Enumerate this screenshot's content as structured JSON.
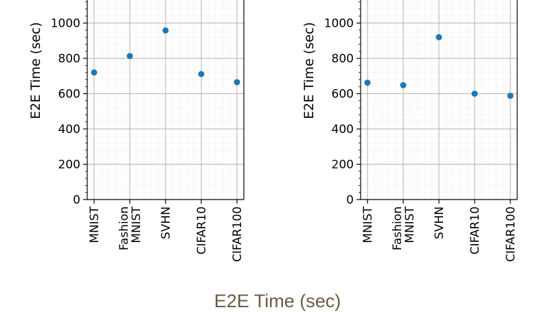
{
  "caption": "E2E Time (sec)",
  "chart_data": [
    {
      "type": "scatter",
      "ylabel": "E2E Time (sec)",
      "xlabel": "",
      "categories": [
        "MNIST",
        "Fashion\nMNIST",
        "SVHN",
        "CIFAR10",
        "CIFAR100"
      ],
      "values": [
        720,
        813,
        958,
        711,
        665
      ],
      "ylim": [
        0,
        1150
      ],
      "yticks": [
        0,
        200,
        400,
        600,
        800,
        1000
      ],
      "grid": true,
      "marker_color": "#1f77b4"
    },
    {
      "type": "scatter",
      "ylabel": "E2E Time (sec)",
      "xlabel": "",
      "categories": [
        "MNIST",
        "Fashion\nMNIST",
        "SVHN",
        "CIFAR10",
        "CIFAR100"
      ],
      "values": [
        662,
        648,
        920,
        600,
        588
      ],
      "ylim": [
        0,
        1150
      ],
      "yticks": [
        0,
        200,
        400,
        600,
        800,
        1000
      ],
      "grid": true,
      "marker_color": "#1f77b4"
    }
  ]
}
